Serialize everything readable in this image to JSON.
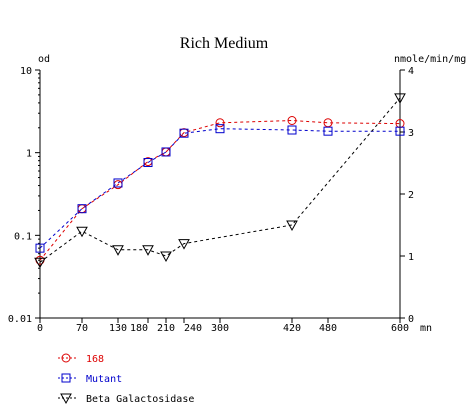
{
  "chart_data": {
    "type": "line",
    "title": "Rich Medium",
    "xlabel": "mn",
    "ylabel_left": "od",
    "ylabel_right": "nmole/min/mg",
    "x_ticks": [
      0,
      70,
      130,
      180,
      210,
      240,
      300,
      420,
      480,
      600
    ],
    "x_tick_labels": [
      "0",
      "70",
      "130",
      "180",
      "210",
      "240",
      "300",
      "420",
      "480",
      "600"
    ],
    "xlim": [
      0,
      600
    ],
    "y_left_scale": "log",
    "y_left_lim": [
      0.01,
      10
    ],
    "y_left_ticks": [
      0.01,
      0.1,
      1,
      10
    ],
    "y_left_tick_labels": [
      "0.01",
      "0.1",
      "1",
      "10"
    ],
    "y_right_lim": [
      0,
      4
    ],
    "y_right_ticks": [
      0,
      1,
      2,
      3,
      4
    ],
    "y_right_tick_labels": [
      "0",
      "1",
      "2",
      "3",
      "4"
    ],
    "grid": false,
    "legend_position": "bottom-left",
    "series": [
      {
        "name": "168",
        "axis": "left",
        "color": "#dd0000",
        "marker": "circle",
        "x": [
          0,
          70,
          130,
          180,
          210,
          240,
          300,
          420,
          480,
          600
        ],
        "y": [
          0.05,
          0.21,
          0.41,
          0.78,
          1.02,
          1.75,
          2.3,
          2.45,
          2.3,
          2.25
        ]
      },
      {
        "name": "Mutant",
        "axis": "left",
        "color": "#0000cc",
        "marker": "square",
        "x": [
          0,
          70,
          130,
          180,
          210,
          240,
          300,
          420,
          480,
          600
        ],
        "y": [
          0.07,
          0.21,
          0.43,
          0.76,
          1.02,
          1.72,
          1.95,
          1.88,
          1.82,
          1.82
        ]
      },
      {
        "name": "Beta Galactosidase",
        "axis": "right",
        "color": "#000000",
        "marker": "triangle-down",
        "x": [
          0,
          70,
          130,
          180,
          210,
          240,
          420,
          600
        ],
        "y": [
          0.9,
          1.4,
          1.1,
          1.1,
          1.0,
          1.2,
          1.5,
          3.55
        ]
      }
    ]
  }
}
